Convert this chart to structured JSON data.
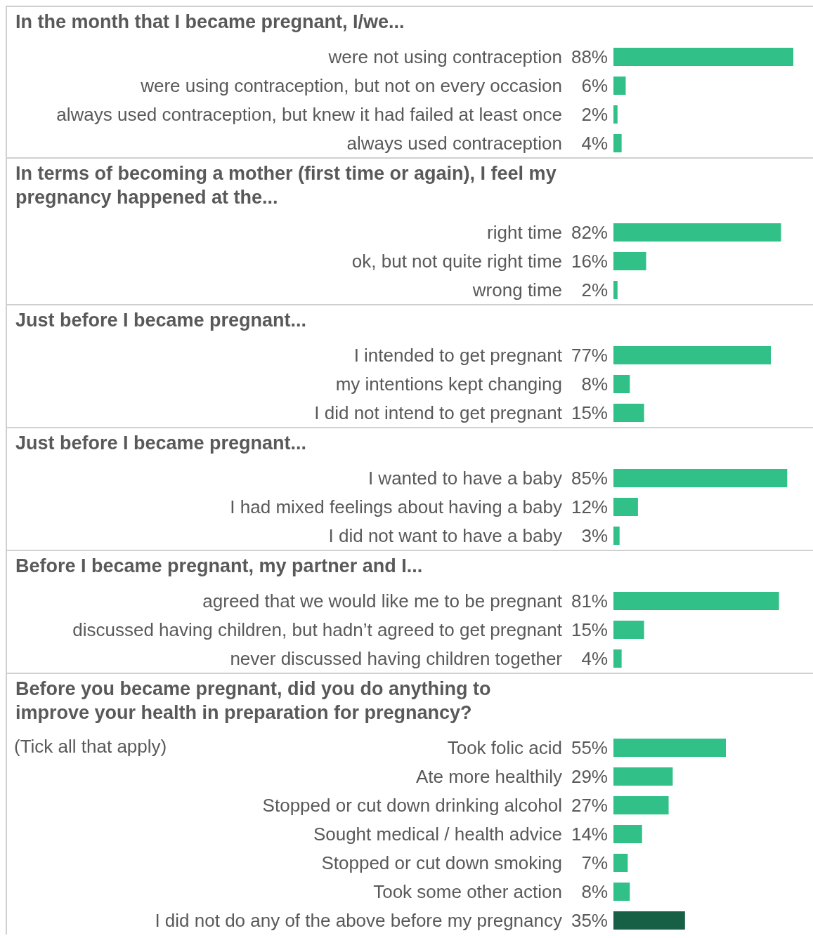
{
  "chart_data": [
    {
      "type": "bar",
      "orientation": "horizontal",
      "title": "In the month that I became pregnant, I/we...",
      "categories": [
        "were not using contraception",
        "were using contraception, but not on every occasion",
        "always used contraception, but knew it had failed at least once",
        "always used contraception"
      ],
      "values": [
        88,
        6,
        2,
        4
      ],
      "value_labels": [
        "88%",
        "6%",
        "2%",
        "4%"
      ],
      "color": "#30c088",
      "tick_labels": "y",
      "legend": false,
      "grid": false
    },
    {
      "type": "bar",
      "orientation": "horizontal",
      "title": "In terms of becoming a mother (first time or again), I feel my pregnancy happened at the...",
      "categories": [
        "right time",
        "ok, but not quite right time",
        "wrong time"
      ],
      "values": [
        82,
        16,
        2
      ],
      "value_labels": [
        "82%",
        "16%",
        "2%"
      ],
      "color": "#30c088",
      "tick_labels": "y",
      "legend": false,
      "grid": false
    },
    {
      "type": "bar",
      "orientation": "horizontal",
      "title": "Just before I became pregnant...",
      "categories": [
        "I intended to get pregnant",
        "my intentions kept changing",
        "I did not intend to get pregnant"
      ],
      "values": [
        77,
        8,
        15
      ],
      "value_labels": [
        "77%",
        "8%",
        "15%"
      ],
      "color": "#30c088",
      "tick_labels": "y",
      "legend": false,
      "grid": false
    },
    {
      "type": "bar",
      "orientation": "horizontal",
      "title": "Just before I became pregnant...",
      "categories": [
        "I wanted to have a baby",
        "I had mixed feelings about having a baby",
        "I did not want to have a baby"
      ],
      "values": [
        85,
        12,
        3
      ],
      "value_labels": [
        "85%",
        "12%",
        "3%"
      ],
      "color": "#30c088",
      "tick_labels": "y",
      "legend": false,
      "grid": false
    },
    {
      "type": "bar",
      "orientation": "horizontal",
      "title": "Before I became pregnant, my partner and I...",
      "categories": [
        "agreed that we would like me to be pregnant",
        "discussed having children, but hadn’t agreed to get pregnant",
        "never discussed having children together"
      ],
      "values": [
        81,
        15,
        4
      ],
      "value_labels": [
        "81%",
        "15%",
        "4%"
      ],
      "color": "#30c088",
      "tick_labels": "y",
      "legend": false,
      "grid": false
    },
    {
      "type": "bar",
      "orientation": "horizontal",
      "title": "Before you became pregnant, did you do anything to improve your health in preparation for pregnancy?",
      "annotations": [
        "(Tick all that apply)"
      ],
      "categories": [
        "Took folic acid",
        "Ate more healthily",
        "Stopped or cut down drinking alcohol",
        "Sought medical / health advice",
        "Stopped or cut down smoking",
        "Took some other action",
        "I did not do any of the above before my pregnancy"
      ],
      "values": [
        55,
        29,
        27,
        14,
        7,
        8,
        35
      ],
      "value_labels": [
        "55%",
        "29%",
        "27%",
        "14%",
        "7%",
        "8%",
        "35%"
      ],
      "colors": [
        "#30c088",
        "#30c088",
        "#30c088",
        "#30c088",
        "#30c088",
        "#30c088",
        "#175f45"
      ],
      "tick_labels": "y",
      "legend": false,
      "grid": false
    }
  ]
}
